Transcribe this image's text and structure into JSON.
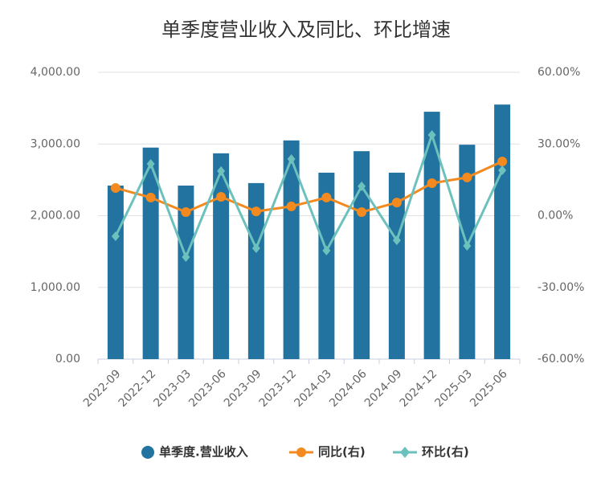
{
  "chart_data": {
    "type": "bar-line",
    "title": "单季度营业收入及同比、环比增速",
    "categories": [
      "2022-09",
      "2022-12",
      "2023-03",
      "2023-06",
      "2023-09",
      "2023-12",
      "2024-03",
      "2024-06",
      "2024-09",
      "2024-12",
      "2025-03",
      "2025-06"
    ],
    "series": [
      {
        "name": "单季度.营业收入",
        "type": "bar",
        "color": "#2273a0",
        "values": [
          2420,
          2950,
          2420,
          2870,
          2455,
          3050,
          2600,
          2900,
          2600,
          3450,
          2990,
          3550
        ]
      },
      {
        "name": "同比(右)",
        "type": "line",
        "marker": "circle",
        "axis": "y2",
        "color": "#f28a1f",
        "values": [
          11.6,
          7.6,
          1.5,
          7.9,
          1.8,
          3.9,
          7.6,
          1.5,
          5.5,
          13.6,
          16.0,
          22.7
        ]
      },
      {
        "name": "环比(右)",
        "type": "line",
        "marker": "diamond",
        "axis": "y2",
        "color": "#6cc1bd",
        "values": [
          -8.6,
          21.7,
          -17.3,
          18.7,
          -13.6,
          23.7,
          -14.6,
          12.3,
          -10.3,
          33.8,
          -12.6,
          19.0
        ]
      }
    ],
    "ylim": [
      0,
      4000
    ],
    "yticks": [
      {
        "value": 0,
        "label": "0.00"
      },
      {
        "value": 1000,
        "label": "1,000.00"
      },
      {
        "value": 2000,
        "label": "2,000.00"
      },
      {
        "value": 3000,
        "label": "3,000.00"
      },
      {
        "value": 4000,
        "label": "4,000.00"
      }
    ],
    "y2lim": [
      -60,
      60
    ],
    "y2ticks": [
      {
        "value": -60,
        "label": "-60.00%"
      },
      {
        "value": -30,
        "label": "-30.00%"
      },
      {
        "value": 0,
        "label": "0.00%"
      },
      {
        "value": 30,
        "label": "30.00%"
      },
      {
        "value": 60,
        "label": "60.00%"
      }
    ],
    "grid": true
  }
}
